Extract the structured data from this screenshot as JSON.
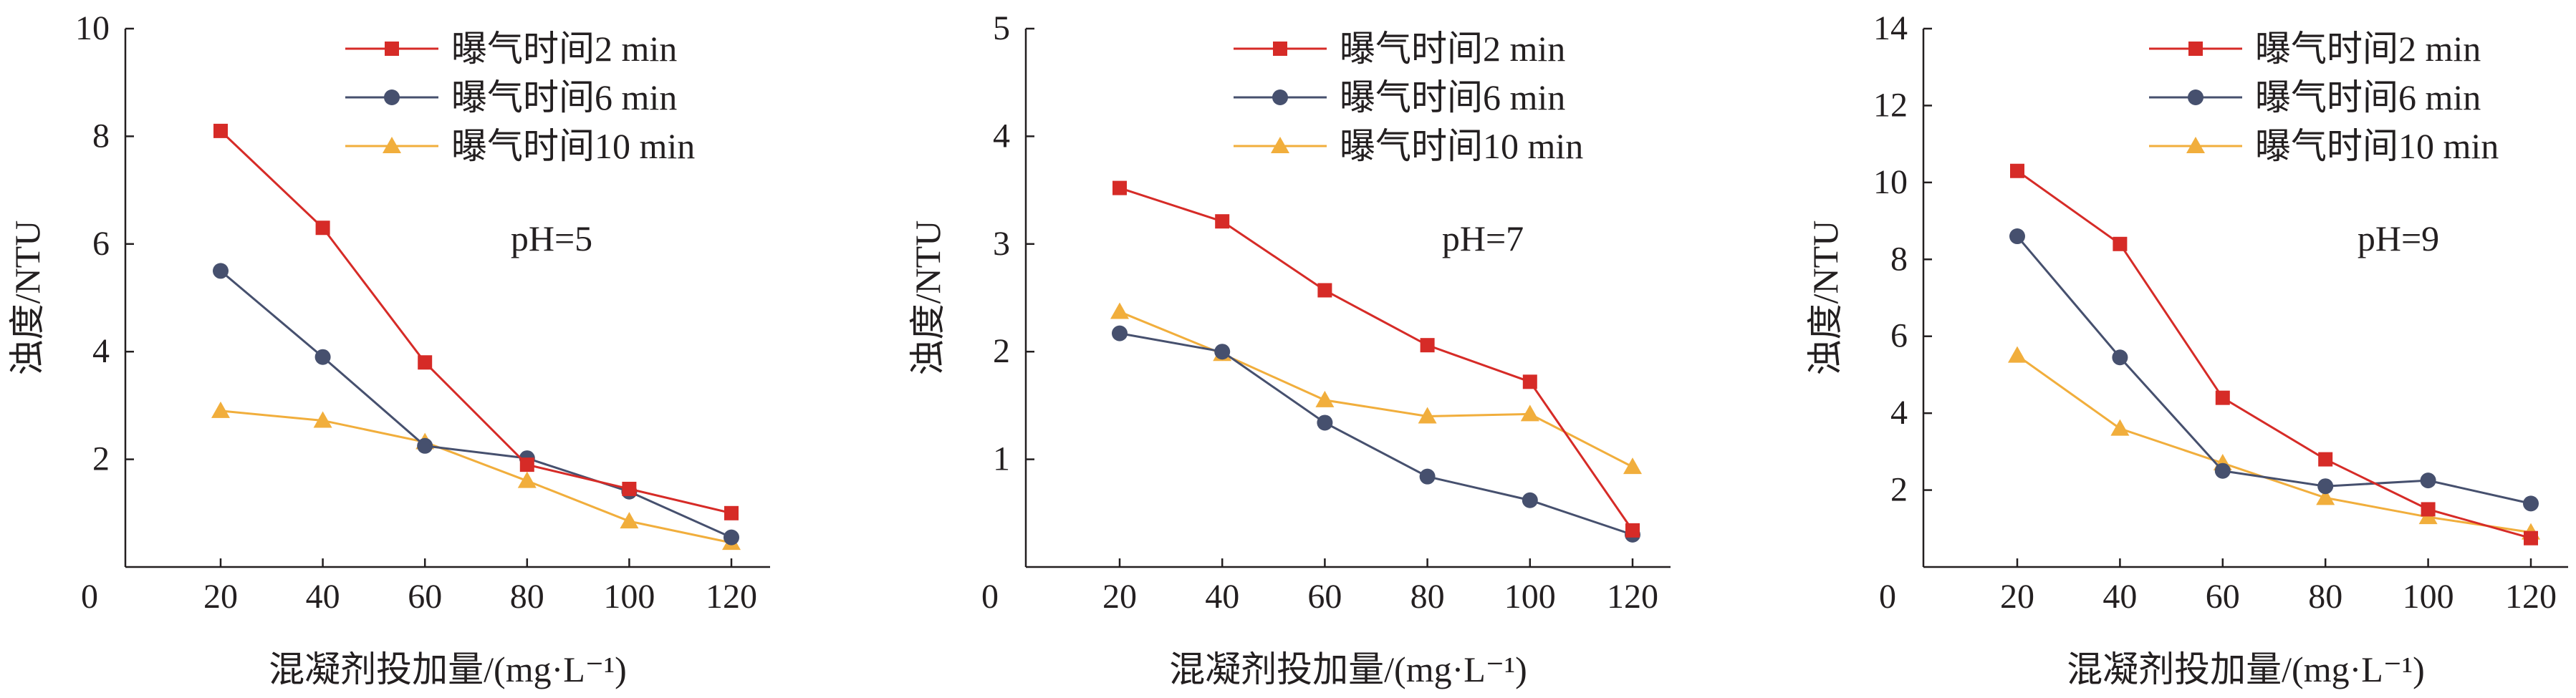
{
  "figure": {
    "font": "serif",
    "colors": {
      "axis": "#231f20",
      "text": "#231f20"
    }
  },
  "chart_data": [
    {
      "type": "line",
      "x_label": "混凝剂投加量/(mg·L⁻¹)",
      "y_label": "浊度/NTU",
      "annotation": "pH=5",
      "x": [
        20,
        40,
        60,
        80,
        100,
        120
      ],
      "xlim": [
        0,
        130
      ],
      "ylim": [
        0,
        10
      ],
      "x_ticks": [
        20,
        40,
        60,
        80,
        100,
        120
      ],
      "y_ticks": [
        2,
        4,
        6,
        8,
        10
      ],
      "origin_label": "0",
      "legend_position": "top-right",
      "grid": false,
      "series": [
        {
          "name": "曝气时间2 min",
          "color": "#d62b27",
          "marker": "square",
          "values": [
            8.1,
            6.3,
            3.8,
            1.9,
            1.45,
            1.0
          ]
        },
        {
          "name": "曝气时间6 min",
          "color": "#46506e",
          "marker": "circle",
          "values": [
            5.5,
            3.9,
            2.25,
            2.02,
            1.4,
            0.55
          ]
        },
        {
          "name": "曝气时间10 min",
          "color": "#f1ae3c",
          "marker": "triangle",
          "values": [
            2.9,
            2.72,
            2.32,
            1.6,
            0.85,
            0.45
          ]
        }
      ]
    },
    {
      "type": "line",
      "x_label": "混凝剂投加量/(mg·L⁻¹)",
      "y_label": "浊度/NTU",
      "annotation": "pH=7",
      "x": [
        20,
        40,
        60,
        80,
        100,
        120
      ],
      "xlim": [
        0,
        130
      ],
      "ylim": [
        0,
        5
      ],
      "x_ticks": [
        20,
        40,
        60,
        80,
        100,
        120
      ],
      "y_ticks": [
        1,
        2,
        3,
        4,
        5
      ],
      "origin_label": "0",
      "legend_position": "top-right",
      "grid": false,
      "series": [
        {
          "name": "曝气时间2 min",
          "color": "#d62b27",
          "marker": "square",
          "values": [
            3.52,
            3.21,
            2.57,
            2.06,
            1.72,
            0.34
          ]
        },
        {
          "name": "曝气时间6 min",
          "color": "#46506e",
          "marker": "circle",
          "values": [
            2.17,
            2.0,
            1.34,
            0.84,
            0.62,
            0.3
          ]
        },
        {
          "name": "曝气时间10 min",
          "color": "#f1ae3c",
          "marker": "triangle",
          "values": [
            2.37,
            1.98,
            1.55,
            1.4,
            1.42,
            0.93
          ]
        }
      ]
    },
    {
      "type": "line",
      "x_label": "混凝剂投加量/(mg·L⁻¹)",
      "y_label": "浊度/NTU",
      "annotation": "pH=9",
      "x": [
        20,
        40,
        60,
        80,
        100,
        120
      ],
      "xlim": [
        0,
        130
      ],
      "ylim": [
        0,
        14
      ],
      "x_ticks": [
        20,
        40,
        60,
        80,
        100,
        120
      ],
      "y_ticks": [
        2,
        4,
        6,
        8,
        10,
        12,
        14
      ],
      "origin_label": "0",
      "legend_position": "top-right",
      "grid": false,
      "series": [
        {
          "name": "曝气时间2 min",
          "color": "#d62b27",
          "marker": "square",
          "values": [
            10.3,
            8.4,
            4.4,
            2.8,
            1.5,
            0.75
          ]
        },
        {
          "name": "曝气时间6 min",
          "color": "#46506e",
          "marker": "circle",
          "values": [
            8.6,
            5.45,
            2.5,
            2.1,
            2.25,
            1.65
          ]
        },
        {
          "name": "曝气时间10 min",
          "color": "#f1ae3c",
          "marker": "triangle",
          "values": [
            5.5,
            3.6,
            2.7,
            1.8,
            1.3,
            0.9
          ]
        }
      ]
    }
  ]
}
